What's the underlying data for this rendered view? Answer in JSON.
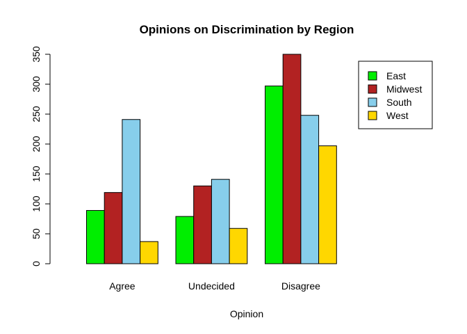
{
  "chart_data": {
    "type": "bar",
    "layout": "grouped",
    "title": "Opinions on Discrimination by Region",
    "xlabel": "Opinion",
    "ylabel": "",
    "categories": [
      "Agree",
      "Undecided",
      "Disagree"
    ],
    "series": [
      {
        "name": "East",
        "color": "#00ee00",
        "values": [
          89,
          79,
          297
        ]
      },
      {
        "name": "Midwest",
        "color": "#b22222",
        "values": [
          119,
          130,
          350
        ]
      },
      {
        "name": "South",
        "color": "#87ceeb",
        "values": [
          241,
          141,
          248
        ]
      },
      {
        "name": "West",
        "color": "#ffd700",
        "values": [
          37,
          59,
          197
        ]
      }
    ],
    "ylim": [
      0,
      350
    ],
    "yticks": [
      0,
      50,
      100,
      150,
      200,
      250,
      300,
      350
    ],
    "grid": false,
    "legend_position": "top-right"
  }
}
